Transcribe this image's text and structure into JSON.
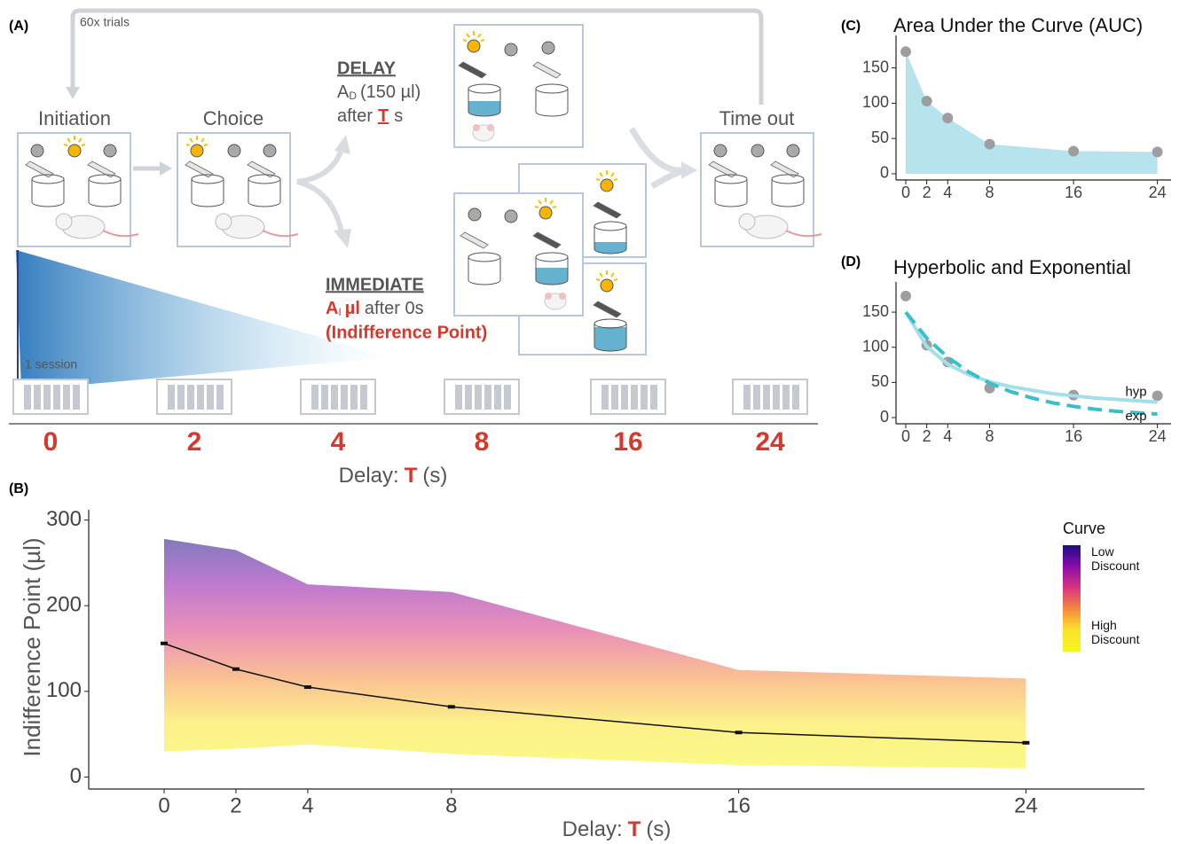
{
  "panel_a": {
    "label": "(A)",
    "loop": "60x trials",
    "initiation": "Initiation",
    "choice": "Choice",
    "delay": {
      "title": "DELAY",
      "amount": "A",
      "amount_sub": "D",
      "volume": "(150 µl)",
      "after": "after",
      "t": "T",
      "unit": "s"
    },
    "immediate": {
      "title": "IMMEDIATE",
      "amount": "A",
      "amount_sub": "I",
      "unit": "µl",
      "after": "after 0s",
      "note": "(Indifference Point)"
    },
    "time_out": "Time out",
    "session": "1 session",
    "delays": [
      0,
      2,
      4,
      8,
      16,
      24
    ],
    "axis_label": {
      "prefix": "Delay:",
      "t": "T",
      "unit": "(s)"
    }
  },
  "chart_data": [
    {
      "type": "line",
      "label": "(B)",
      "xlabel": {
        "prefix": "Delay:",
        "t": "T",
        "unit": "(s)"
      },
      "ylabel": "Indifference Point (µl)",
      "x": [
        0,
        2,
        4,
        8,
        16,
        24
      ],
      "values": [
        156,
        126,
        105,
        82,
        52,
        40
      ],
      "color": "#111111",
      "range": {
        "low": [
          30,
          33,
          38,
          27,
          14,
          10
        ],
        "high": [
          278,
          265,
          225,
          216,
          125,
          115
        ]
      },
      "xlim": [
        -2.1,
        27.3
      ],
      "ylim": [
        -14,
        312
      ],
      "xticks": [
        0,
        2,
        4,
        8,
        16,
        24
      ],
      "yticks": [
        0,
        100,
        200,
        300
      ],
      "legend": {
        "title": "Curve",
        "low": "Low Discount",
        "high": "High Discount",
        "colors": [
          "#1d0c86",
          "#8a0ca8",
          "#d9357e",
          "#f58a3c",
          "#fbe42a",
          "#f5f521"
        ]
      }
    },
    {
      "type": "area",
      "label": "(C)",
      "title": "Area Under the Curve (AUC)",
      "x": [
        0,
        2,
        4,
        8,
        16,
        24
      ],
      "values": [
        173,
        103,
        79,
        42,
        32,
        31
      ],
      "color": "#b7e3ee",
      "point_color": "#9e9e9e",
      "xlim": [
        -0.93,
        25.3
      ],
      "ylim": [
        -8.8,
        196
      ],
      "xticks": [
        0,
        2,
        4,
        8,
        16,
        24
      ],
      "yticks": [
        0,
        50,
        100,
        150
      ]
    },
    {
      "type": "line",
      "label": "(D)",
      "title": "Hyperbolic and Exponential",
      "x": [
        0,
        2,
        4,
        8,
        16,
        24
      ],
      "values": [
        173,
        103,
        79,
        42,
        32,
        31
      ],
      "point_color": "#9e9e9e",
      "xlim": [
        -0.93,
        25.3
      ],
      "ylim": [
        -8.8,
        193
      ],
      "xticks": [
        0,
        2,
        4,
        8,
        16,
        24
      ],
      "yticks": [
        0,
        50,
        100,
        150
      ],
      "series": [
        {
          "name": "hyp",
          "color": "#a3dfea",
          "dash": false,
          "x": [
            0,
            2,
            4,
            6,
            8,
            10,
            12,
            14,
            16,
            18,
            20,
            22,
            24
          ],
          "values": [
            150,
            101,
            76,
            61,
            51,
            44,
            39,
            34,
            31,
            28,
            26,
            24,
            22
          ]
        },
        {
          "name": "exp",
          "color": "#38bfc8",
          "dash": true,
          "x": [
            0,
            2,
            4,
            6,
            8,
            10,
            12,
            14,
            16,
            18,
            20,
            22,
            24
          ],
          "values": [
            150,
            113,
            86,
            65,
            49,
            37,
            28,
            21,
            16,
            12,
            9,
            7,
            5
          ]
        }
      ]
    }
  ]
}
